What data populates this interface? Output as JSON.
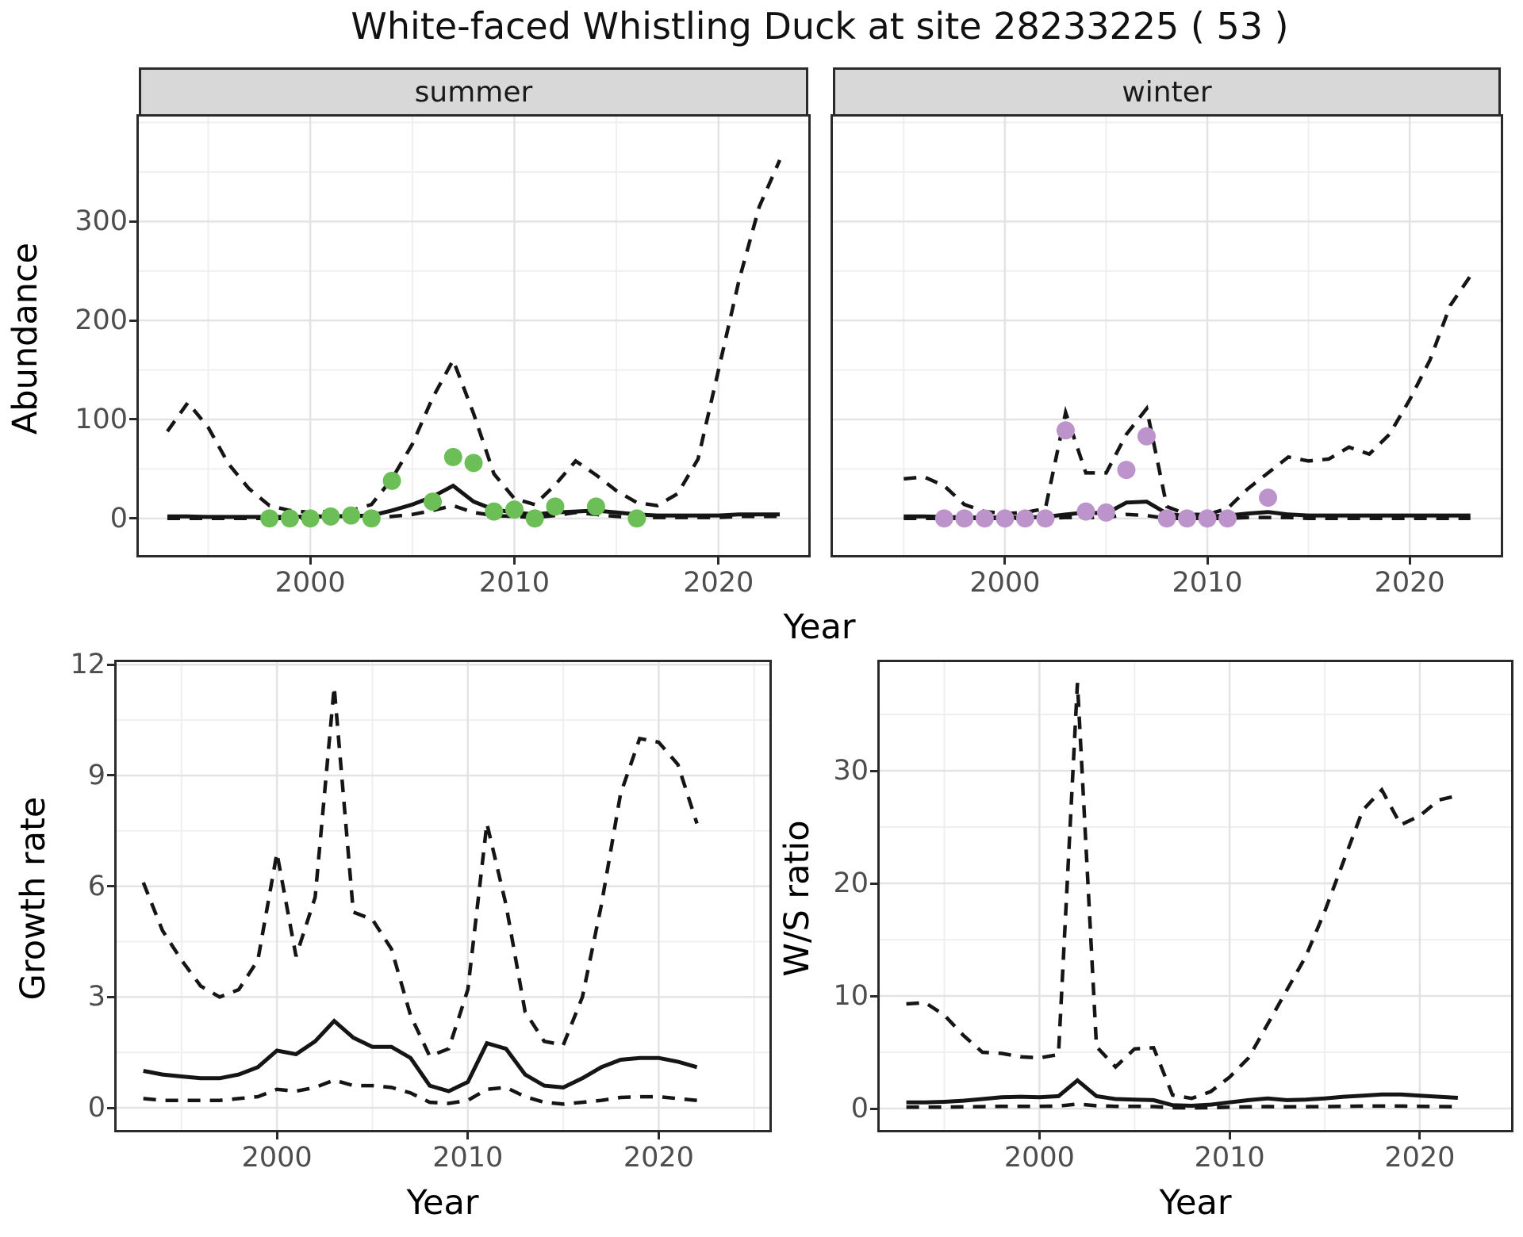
{
  "title": "White-faced Whistling Duck at site 28233225 ( 53 )",
  "facets": [
    {
      "label": "summer"
    },
    {
      "label": "winter"
    }
  ],
  "axes": {
    "abundance_y_title": "Abundance",
    "top_x_title": "Year",
    "growth_y_title": "Growth rate",
    "growth_x_title": "Year",
    "ws_y_title": "W/S ratio",
    "ws_x_title": "Year"
  },
  "colors": {
    "summer_points": "#6cbf57",
    "winter_points": "#bc93ca",
    "line": "#151515",
    "grid_major": "#e3e3e3",
    "grid_minor": "#efefef",
    "strip_fill": "#d8d8d8",
    "panel_border": "#2a2a2a",
    "tick_label": "#4d4d4d",
    "background": "#ffffff"
  },
  "chart_data": [
    {
      "id": "abundance-summer",
      "type": "line+scatter",
      "facet": "summer",
      "xlabel": "Year",
      "ylabel": "Abundance",
      "xlim": [
        1991.6,
        2024.4
      ],
      "ylim": [
        -37,
        406
      ],
      "x_major": [
        2000,
        2010,
        2020
      ],
      "x_minor": [
        1995,
        2005,
        2015
      ],
      "y_major": [
        0,
        100,
        200,
        300
      ],
      "y_minor": [
        50,
        150,
        250,
        350,
        400
      ],
      "grid": true,
      "legend": "none",
      "series": [
        {
          "name": "upper-95ci",
          "style": "dashed",
          "x": [
            1993,
            1994,
            1995,
            1996,
            1997,
            1998,
            1999,
            2000,
            2001,
            2002,
            2003,
            2004,
            2005,
            2006,
            2007,
            2008,
            2009,
            2010,
            2011,
            2012,
            2013,
            2014,
            2015,
            2016,
            2017,
            2018,
            2019,
            2020,
            2021,
            2022,
            2023
          ],
          "y": [
            88,
            117,
            92,
            55,
            30,
            13,
            8,
            6,
            7,
            8,
            14,
            40,
            75,
            122,
            160,
            106,
            45,
            20,
            14,
            34,
            58,
            44,
            28,
            16,
            13,
            25,
            60,
            150,
            240,
            315,
            362
          ]
        },
        {
          "name": "mean",
          "style": "solid",
          "x": [
            1993,
            1994,
            1995,
            1996,
            1997,
            1998,
            1999,
            2000,
            2001,
            2002,
            2003,
            2004,
            2005,
            2006,
            2007,
            2008,
            2009,
            2010,
            2011,
            2012,
            2013,
            2014,
            2015,
            2016,
            2017,
            2018,
            2019,
            2020,
            2021,
            2022,
            2023
          ],
          "y": [
            2,
            2,
            1.5,
            1.5,
            1.5,
            1.5,
            1.5,
            2,
            2,
            2.5,
            3,
            8,
            14,
            22,
            33,
            17,
            9,
            6,
            4,
            6,
            7,
            8,
            6,
            4,
            3,
            3,
            3,
            3,
            4,
            4,
            4
          ]
        },
        {
          "name": "lower-95ci",
          "style": "dashed",
          "x": [
            1993,
            1994,
            1995,
            1996,
            1997,
            1998,
            1999,
            2000,
            2001,
            2002,
            2003,
            2004,
            2005,
            2006,
            2007,
            2008,
            2009,
            2010,
            2011,
            2012,
            2013,
            2014,
            2015,
            2016,
            2017,
            2018,
            2019,
            2020,
            2021,
            2022,
            2023
          ],
          "y": [
            0,
            0,
            0,
            0,
            0,
            0,
            0,
            0,
            0,
            0,
            1,
            2,
            4,
            8,
            13,
            6,
            3,
            2,
            1,
            3,
            6,
            4,
            2,
            1,
            1,
            1,
            1,
            1,
            2,
            2,
            2
          ]
        },
        {
          "name": "observed",
          "style": "points",
          "color": "#6cbf57",
          "x": [
            1998,
            1999,
            2000,
            2001,
            2002,
            2003,
            2004,
            2006,
            2007,
            2008,
            2009,
            2010,
            2011,
            2012,
            2014,
            2016
          ],
          "y": [
            0,
            0,
            0,
            2,
            3,
            0,
            38,
            17,
            62,
            56,
            7,
            9,
            0,
            12,
            12,
            0
          ]
        }
      ]
    },
    {
      "id": "abundance-winter",
      "type": "line+scatter",
      "facet": "winter",
      "xlabel": "Year",
      "ylabel": "Abundance",
      "xlim": [
        1991.5,
        2024.5
      ],
      "ylim": [
        -37,
        406
      ],
      "x_major": [
        2000,
        2010,
        2020
      ],
      "x_minor": [
        1995,
        2005,
        2015
      ],
      "y_major": [
        0,
        100,
        200,
        300
      ],
      "y_minor": [
        50,
        150,
        250,
        350,
        400
      ],
      "grid": true,
      "legend": "none",
      "series": [
        {
          "name": "upper-95ci",
          "style": "dashed",
          "x": [
            1995,
            1996,
            1997,
            1998,
            1999,
            2000,
            2001,
            2002,
            2003,
            2004,
            2005,
            2006,
            2007,
            2008,
            2009,
            2010,
            2011,
            2012,
            2013,
            2014,
            2015,
            2016,
            2017,
            2018,
            2019,
            2020,
            2021,
            2022,
            2023
          ],
          "y": [
            40,
            42,
            33,
            14,
            7,
            5,
            6,
            10,
            107,
            46,
            46,
            85,
            111,
            12,
            4,
            4,
            10,
            30,
            46,
            62,
            58,
            60,
            72,
            65,
            85,
            120,
            160,
            215,
            245
          ]
        },
        {
          "name": "mean",
          "style": "solid",
          "x": [
            1995,
            1996,
            1997,
            1998,
            1999,
            2000,
            2001,
            2002,
            2003,
            2004,
            2005,
            2006,
            2007,
            2008,
            2009,
            2010,
            2011,
            2012,
            2013,
            2014,
            2015,
            2016,
            2017,
            2018,
            2019,
            2020,
            2021,
            2022,
            2023
          ],
          "y": [
            2,
            2,
            1.5,
            1,
            1,
            1,
            1,
            1.5,
            4,
            6,
            5,
            16,
            17,
            5,
            2,
            2,
            3,
            5,
            6.5,
            4,
            3,
            3,
            3,
            3,
            3,
            3,
            3,
            3,
            3
          ]
        },
        {
          "name": "lower-95ci",
          "style": "dashed",
          "x": [
            1995,
            1996,
            1997,
            1998,
            1999,
            2000,
            2001,
            2002,
            2003,
            2004,
            2005,
            2006,
            2007,
            2008,
            2009,
            2010,
            2011,
            2012,
            2013,
            2014,
            2015,
            2016,
            2017,
            2018,
            2019,
            2020,
            2021,
            2022,
            2023
          ],
          "y": [
            0,
            0,
            0,
            0,
            0,
            0,
            0,
            0,
            1,
            1,
            1,
            4,
            3,
            0,
            0,
            0,
            0,
            1,
            1,
            1,
            0,
            0,
            0,
            0,
            0,
            0,
            0,
            0,
            0
          ]
        },
        {
          "name": "observed",
          "style": "points",
          "color": "#bc93ca",
          "x": [
            1997,
            1998,
            1999,
            2000,
            2001,
            2002,
            2003,
            2004,
            2005,
            2006,
            2007,
            2008,
            2009,
            2010,
            2011,
            2013
          ],
          "y": [
            0,
            0,
            0,
            0,
            0,
            0,
            89,
            7,
            6,
            49,
            83,
            0,
            0,
            0,
            0,
            21
          ]
        }
      ]
    },
    {
      "id": "growth-rate",
      "type": "line",
      "facet": null,
      "xlabel": "Year",
      "ylabel": "Growth rate",
      "xlim": [
        1991.6,
        2025.8
      ],
      "ylim": [
        -0.6,
        12.07
      ],
      "x_major": [
        2000,
        2010,
        2020
      ],
      "x_minor": [
        1995,
        2005,
        2015,
        2025
      ],
      "y_major": [
        0,
        3,
        6,
        9,
        12
      ],
      "y_minor": [
        1.5,
        4.5,
        7.5,
        10.5
      ],
      "grid": true,
      "legend": "none",
      "series": [
        {
          "name": "upper-95ci",
          "style": "dashed",
          "x": [
            1993,
            1994,
            1995,
            1996,
            1997,
            1998,
            1999,
            2000,
            2001,
            2002,
            2003,
            2004,
            2005,
            2006,
            2007,
            2008,
            2009,
            2010,
            2011,
            2012,
            2013,
            2014,
            2015,
            2016,
            2017,
            2018,
            2019,
            2020,
            2021,
            2022
          ],
          "y": [
            6.1,
            4.8,
            4.0,
            3.3,
            3.0,
            3.2,
            4.0,
            6.9,
            4.1,
            5.7,
            11.4,
            5.3,
            5.1,
            4.3,
            2.5,
            1.4,
            1.6,
            3.2,
            7.7,
            5.5,
            2.6,
            1.8,
            1.7,
            3.0,
            5.5,
            8.5,
            10.0,
            9.9,
            9.3,
            7.7
          ]
        },
        {
          "name": "mean",
          "style": "solid",
          "x": [
            1993,
            1994,
            1995,
            1996,
            1997,
            1998,
            1999,
            2000,
            2001,
            2002,
            2003,
            2004,
            2005,
            2006,
            2007,
            2008,
            2009,
            2010,
            2011,
            2012,
            2013,
            2014,
            2015,
            2016,
            2017,
            2018,
            2019,
            2020,
            2021,
            2022
          ],
          "y": [
            1.0,
            0.9,
            0.85,
            0.8,
            0.8,
            0.9,
            1.1,
            1.55,
            1.45,
            1.8,
            2.35,
            1.9,
            1.65,
            1.65,
            1.35,
            0.6,
            0.45,
            0.7,
            1.75,
            1.6,
            0.9,
            0.6,
            0.55,
            0.8,
            1.1,
            1.3,
            1.35,
            1.35,
            1.25,
            1.1
          ]
        },
        {
          "name": "lower-95ci",
          "style": "dashed",
          "x": [
            1993,
            1994,
            1995,
            1996,
            1997,
            1998,
            1999,
            2000,
            2001,
            2002,
            2003,
            2004,
            2005,
            2006,
            2007,
            2008,
            2009,
            2010,
            2011,
            2012,
            2013,
            2014,
            2015,
            2016,
            2017,
            2018,
            2019,
            2020,
            2021,
            2022
          ],
          "y": [
            0.25,
            0.2,
            0.2,
            0.2,
            0.2,
            0.25,
            0.3,
            0.5,
            0.45,
            0.55,
            0.75,
            0.6,
            0.6,
            0.55,
            0.4,
            0.15,
            0.12,
            0.2,
            0.5,
            0.55,
            0.3,
            0.15,
            0.1,
            0.15,
            0.2,
            0.28,
            0.3,
            0.3,
            0.25,
            0.2
          ]
        }
      ]
    },
    {
      "id": "ws-ratio",
      "type": "line",
      "facet": null,
      "xlabel": "Year",
      "ylabel": "W/S ratio",
      "xlim": [
        1991.6,
        2024.8
      ],
      "ylim": [
        -1.9,
        39.65
      ],
      "x_major": [
        2000,
        2010,
        2020
      ],
      "x_minor": [
        1995,
        2005,
        2015
      ],
      "y_major": [
        0,
        10,
        20,
        30
      ],
      "y_minor": [
        5,
        15,
        25,
        35
      ],
      "grid": true,
      "legend": "none",
      "series": [
        {
          "name": "upper-95ci",
          "style": "dashed",
          "x": [
            1993,
            1994,
            1995,
            1996,
            1997,
            1998,
            1999,
            2000,
            2001,
            2002,
            2003,
            2004,
            2005,
            2006,
            2007,
            2008,
            2009,
            2010,
            2011,
            2012,
            2013,
            2014,
            2015,
            2016,
            2017,
            2018,
            2019,
            2020,
            2021,
            2022
          ],
          "y": [
            9.3,
            9.4,
            8.3,
            6.5,
            5.0,
            4.9,
            4.6,
            4.5,
            4.8,
            37.8,
            5.5,
            3.7,
            5.3,
            5.4,
            1.2,
            0.9,
            1.5,
            2.8,
            4.5,
            7.5,
            10.5,
            13.5,
            17.5,
            22,
            26.5,
            28.3,
            25.2,
            26.0,
            27.4,
            27.8
          ]
        },
        {
          "name": "mean",
          "style": "solid",
          "x": [
            1993,
            1994,
            1995,
            1996,
            1997,
            1998,
            1999,
            2000,
            2001,
            2002,
            2003,
            2004,
            2005,
            2006,
            2007,
            2008,
            2009,
            2010,
            2011,
            2012,
            2013,
            2014,
            2015,
            2016,
            2017,
            2018,
            2019,
            2020,
            2021,
            2022
          ],
          "y": [
            0.55,
            0.55,
            0.6,
            0.7,
            0.85,
            1.0,
            1.05,
            1.0,
            1.1,
            2.5,
            1.1,
            0.85,
            0.8,
            0.75,
            0.3,
            0.25,
            0.35,
            0.55,
            0.75,
            0.9,
            0.75,
            0.8,
            0.9,
            1.05,
            1.15,
            1.25,
            1.25,
            1.15,
            1.05,
            0.95
          ]
        },
        {
          "name": "lower-95ci",
          "style": "dashed",
          "x": [
            1993,
            1994,
            1995,
            1996,
            1997,
            1998,
            1999,
            2000,
            2001,
            2002,
            2003,
            2004,
            2005,
            2006,
            2007,
            2008,
            2009,
            2010,
            2011,
            2012,
            2013,
            2014,
            2015,
            2016,
            2017,
            2018,
            2019,
            2020,
            2021,
            2022
          ],
          "y": [
            0.12,
            0.12,
            0.13,
            0.15,
            0.17,
            0.2,
            0.2,
            0.2,
            0.22,
            0.4,
            0.25,
            0.2,
            0.2,
            0.18,
            0.07,
            0.06,
            0.08,
            0.12,
            0.15,
            0.18,
            0.15,
            0.16,
            0.18,
            0.2,
            0.22,
            0.22,
            0.22,
            0.2,
            0.18,
            0.16
          ]
        }
      ]
    }
  ]
}
